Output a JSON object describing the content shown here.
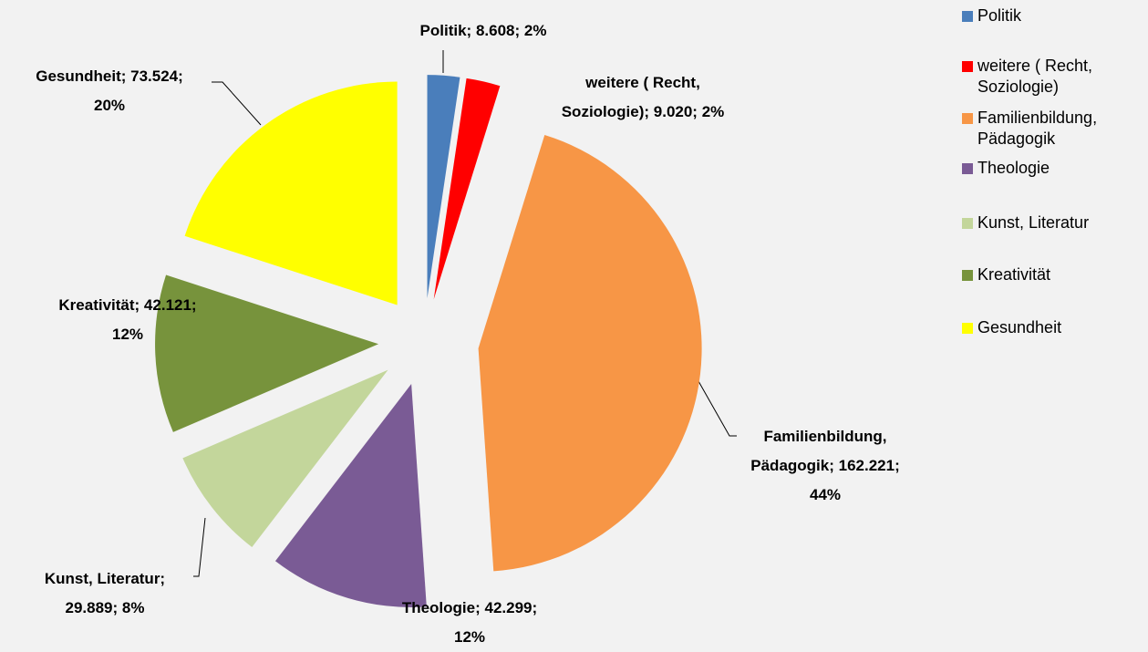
{
  "chart_data": {
    "type": "pie",
    "categories": [
      "Politik",
      "weitere ( Recht, Soziologie)",
      "Familienbildung, Pädagogik",
      "Theologie",
      "Kunst, Literatur",
      "Kreativität",
      "Gesundheit"
    ],
    "values": [
      8608,
      9020,
      162221,
      42299,
      29889,
      42121,
      73524
    ],
    "value_labels": [
      "Politik; 8.608; 2%",
      "weitere ( Recht, Soziologie); 9.020; 2%",
      "Familienbildung, Pädagogik; 162.221; 44%",
      "Theologie; 42.299; 12%",
      "Kunst, Literatur; 29.889; 8%",
      "Kreativität; 42.121; 12%",
      "Gesundheit; 73.524; 20%"
    ],
    "colors": [
      "#4a7ebb",
      "#ff0000",
      "#f79646",
      "#7a5b95",
      "#c3d69b",
      "#77933c",
      "#ffff00"
    ],
    "legend": "right"
  }
}
